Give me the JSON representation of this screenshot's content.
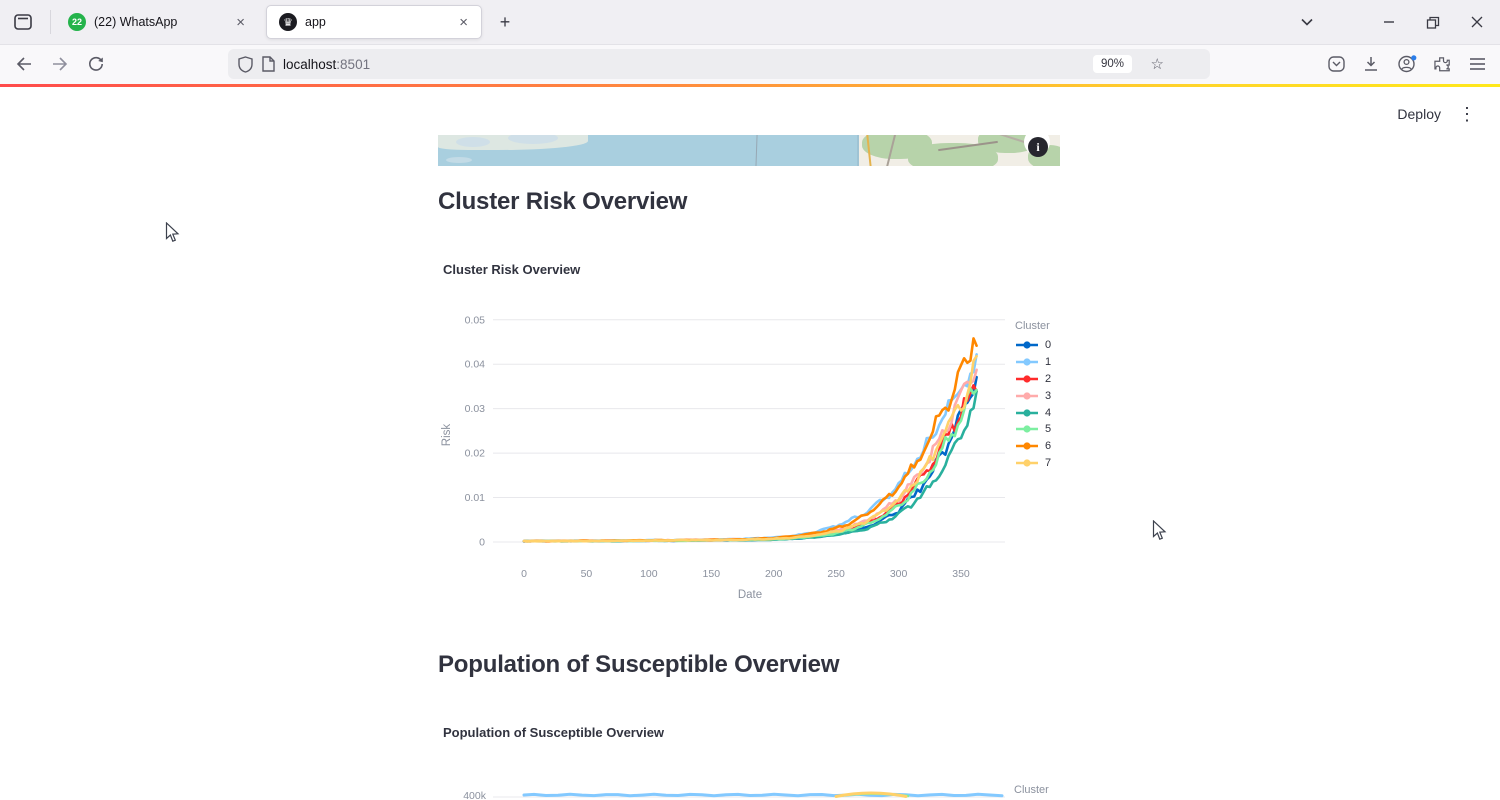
{
  "browser": {
    "tab_strip": {
      "tabs": [
        {
          "label": "(22) WhatsApp",
          "badge_count": "22",
          "close_glyph": "×",
          "active": false
        },
        {
          "label": "app",
          "favicon_glyph": "♛",
          "close_glyph": "×",
          "active": true
        }
      ],
      "new_tab_glyph": "+"
    },
    "navbar": {
      "url_host": "localhost",
      "url_port": ":8501",
      "zoom_badge": "90%",
      "bookmark_glyph": "☆"
    },
    "icons": [
      "firefox-view",
      "tab-overflow-chevron",
      "minimize",
      "restore",
      "close",
      "back-arrow",
      "forward-arrow",
      "reload",
      "shield",
      "page",
      "pocket",
      "download",
      "account",
      "extensions",
      "menu"
    ]
  },
  "app": {
    "deploy_label": "Deploy",
    "menu_glyph": "⋮",
    "map_info_glyph": "i",
    "sections": [
      {
        "heading": "Cluster Risk Overview",
        "chart_title": "Cluster Risk Overview"
      },
      {
        "heading": "Population of Susceptible Overview",
        "chart_title": "Population of Susceptible Overview"
      }
    ]
  },
  "chart_data": [
    {
      "type": "line",
      "title": "Cluster Risk Overview",
      "xlabel": "Date",
      "ylabel": "Risk",
      "legend_title": "Cluster",
      "legend_position": "right",
      "grid": "horizontal",
      "xlim": [
        -25,
        385
      ],
      "ylim": [
        0,
        0.052
      ],
      "xticks": [
        0,
        50,
        100,
        150,
        200,
        250,
        300,
        350
      ],
      "ytick_labels": [
        "0",
        "0.01",
        "0.02",
        "0.03",
        "0.04",
        "0.05"
      ],
      "ytick_values": [
        0,
        0.01,
        0.02,
        0.03,
        0.04,
        0.05
      ],
      "x": [
        0,
        25,
        50,
        75,
        100,
        125,
        150,
        175,
        200,
        212,
        225,
        237,
        250,
        262,
        275,
        287,
        300,
        312,
        325,
        337,
        350,
        357,
        363
      ],
      "series": [
        {
          "name": "0",
          "color": "#0068c9",
          "values": [
            0.0002,
            0.0002,
            0.0002,
            0.0003,
            0.0003,
            0.0003,
            0.0004,
            0.0004,
            0.0006,
            0.0007,
            0.0009,
            0.0012,
            0.0017,
            0.0024,
            0.0034,
            0.0049,
            0.0071,
            0.0103,
            0.0149,
            0.0204,
            0.0282,
            0.033,
            0.0375
          ]
        },
        {
          "name": "1",
          "color": "#83c9ff",
          "values": [
            0.0002,
            0.0002,
            0.0003,
            0.0003,
            0.0004,
            0.0004,
            0.0005,
            0.0007,
            0.001,
            0.0013,
            0.0018,
            0.0025,
            0.0036,
            0.005,
            0.0068,
            0.0094,
            0.0128,
            0.0172,
            0.023,
            0.0292,
            0.0348,
            0.0375,
            0.039
          ]
        },
        {
          "name": "2",
          "color": "#ff2b2b",
          "values": [
            0.0002,
            0.0002,
            0.0002,
            0.0003,
            0.0003,
            0.0004,
            0.0004,
            0.0005,
            0.0007,
            0.0009,
            0.0011,
            0.0015,
            0.0021,
            0.003,
            0.0043,
            0.0061,
            0.0086,
            0.0121,
            0.0168,
            0.0228,
            0.0298,
            0.033,
            0.0352
          ]
        },
        {
          "name": "3",
          "color": "#ffabab",
          "values": [
            0.0002,
            0.0002,
            0.0003,
            0.0003,
            0.0003,
            0.0004,
            0.0005,
            0.0006,
            0.0008,
            0.001,
            0.0013,
            0.0018,
            0.0025,
            0.0035,
            0.005,
            0.007,
            0.0098,
            0.0137,
            0.0188,
            0.0252,
            0.0322,
            0.036,
            0.0388
          ]
        },
        {
          "name": "4",
          "color": "#29b09d",
          "values": [
            0.0002,
            0.0002,
            0.0002,
            0.0002,
            0.0003,
            0.0003,
            0.0004,
            0.0004,
            0.0005,
            0.0007,
            0.0009,
            0.0012,
            0.0016,
            0.0022,
            0.0031,
            0.0044,
            0.0062,
            0.0088,
            0.0124,
            0.0174,
            0.024,
            0.0285,
            0.0315
          ]
        },
        {
          "name": "5",
          "color": "#7defa1",
          "values": [
            0.0002,
            0.0002,
            0.0002,
            0.0003,
            0.0003,
            0.0003,
            0.0004,
            0.0005,
            0.0006,
            0.0008,
            0.0011,
            0.0014,
            0.002,
            0.0028,
            0.004,
            0.0056,
            0.0079,
            0.0112,
            0.0157,
            0.0216,
            0.0288,
            0.0325,
            0.0355
          ]
        },
        {
          "name": "6",
          "color": "#ff8700",
          "values": [
            0.0002,
            0.0002,
            0.0003,
            0.0003,
            0.0004,
            0.0004,
            0.0005,
            0.0006,
            0.0009,
            0.0012,
            0.0016,
            0.0022,
            0.0031,
            0.0044,
            0.0063,
            0.0089,
            0.0124,
            0.017,
            0.0231,
            0.0305,
            0.0385,
            0.044,
            0.0477
          ]
        },
        {
          "name": "7",
          "color": "#ffd16a",
          "values": [
            0.0002,
            0.0002,
            0.0002,
            0.0003,
            0.0003,
            0.0004,
            0.0004,
            0.0005,
            0.0007,
            0.0009,
            0.0012,
            0.0017,
            0.0024,
            0.0033,
            0.0047,
            0.0066,
            0.0093,
            0.013,
            0.018,
            0.0243,
            0.0315,
            0.036,
            0.04
          ]
        }
      ]
    },
    {
      "type": "line",
      "title": "Population of Susceptible Overview",
      "legend_title": "Cluster",
      "visible_ytick": "400k",
      "visible_portion": "top sliver only: light-blue series flat near 400k with small orange and green bump around day 260"
    }
  ],
  "theme": {
    "decoration_gradient_start": "#ff4b4b",
    "decoration_gradient_end": "#ffe81a",
    "heading_color": "#31333f",
    "axis_text_color": "#8b919e",
    "grid_color": "#e8e8ec"
  }
}
